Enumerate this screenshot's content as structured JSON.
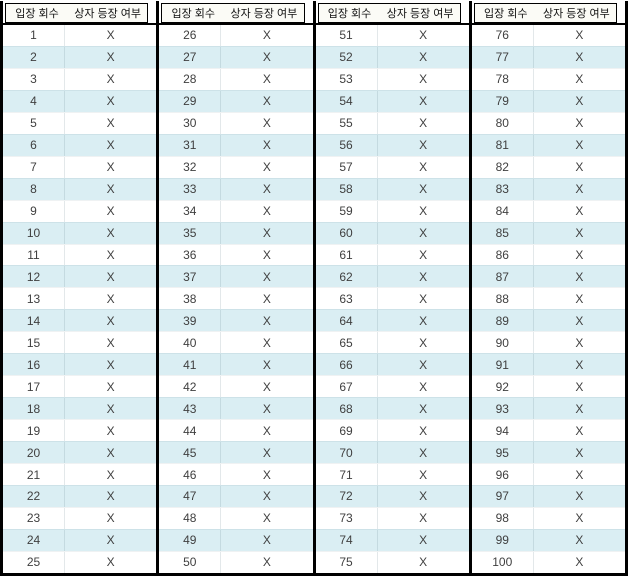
{
  "columns": {
    "entry_header": "입장 회수",
    "box_header": "상자 등장 여부"
  },
  "colors": {
    "stripe": "#daeef3",
    "border": "#000000",
    "cell_text": "#3f3f3f",
    "header_bg": "#fbfbf6"
  },
  "groups": [
    {
      "rows": [
        {
          "n": "1",
          "box": "X"
        },
        {
          "n": "2",
          "box": "X"
        },
        {
          "n": "3",
          "box": "X"
        },
        {
          "n": "4",
          "box": "X"
        },
        {
          "n": "5",
          "box": "X"
        },
        {
          "n": "6",
          "box": "X"
        },
        {
          "n": "7",
          "box": "X"
        },
        {
          "n": "8",
          "box": "X"
        },
        {
          "n": "9",
          "box": "X"
        },
        {
          "n": "10",
          "box": "X"
        },
        {
          "n": "11",
          "box": "X"
        },
        {
          "n": "12",
          "box": "X"
        },
        {
          "n": "13",
          "box": "X"
        },
        {
          "n": "14",
          "box": "X"
        },
        {
          "n": "15",
          "box": "X"
        },
        {
          "n": "16",
          "box": "X"
        },
        {
          "n": "17",
          "box": "X"
        },
        {
          "n": "18",
          "box": "X"
        },
        {
          "n": "19",
          "box": "X"
        },
        {
          "n": "20",
          "box": "X"
        },
        {
          "n": "21",
          "box": "X"
        },
        {
          "n": "22",
          "box": "X"
        },
        {
          "n": "23",
          "box": "X"
        },
        {
          "n": "24",
          "box": "X"
        },
        {
          "n": "25",
          "box": "X"
        }
      ]
    },
    {
      "rows": [
        {
          "n": "26",
          "box": "X"
        },
        {
          "n": "27",
          "box": "X"
        },
        {
          "n": "28",
          "box": "X"
        },
        {
          "n": "29",
          "box": "X"
        },
        {
          "n": "30",
          "box": "X"
        },
        {
          "n": "31",
          "box": "X"
        },
        {
          "n": "32",
          "box": "X"
        },
        {
          "n": "33",
          "box": "X"
        },
        {
          "n": "34",
          "box": "X"
        },
        {
          "n": "35",
          "box": "X"
        },
        {
          "n": "36",
          "box": "X"
        },
        {
          "n": "37",
          "box": "X"
        },
        {
          "n": "38",
          "box": "X"
        },
        {
          "n": "39",
          "box": "X"
        },
        {
          "n": "40",
          "box": "X"
        },
        {
          "n": "41",
          "box": "X"
        },
        {
          "n": "42",
          "box": "X"
        },
        {
          "n": "43",
          "box": "X"
        },
        {
          "n": "44",
          "box": "X"
        },
        {
          "n": "45",
          "box": "X"
        },
        {
          "n": "46",
          "box": "X"
        },
        {
          "n": "47",
          "box": "X"
        },
        {
          "n": "48",
          "box": "X"
        },
        {
          "n": "49",
          "box": "X"
        },
        {
          "n": "50",
          "box": "X"
        }
      ]
    },
    {
      "rows": [
        {
          "n": "51",
          "box": "X"
        },
        {
          "n": "52",
          "box": "X"
        },
        {
          "n": "53",
          "box": "X"
        },
        {
          "n": "54",
          "box": "X"
        },
        {
          "n": "55",
          "box": "X"
        },
        {
          "n": "56",
          "box": "X"
        },
        {
          "n": "57",
          "box": "X"
        },
        {
          "n": "58",
          "box": "X"
        },
        {
          "n": "59",
          "box": "X"
        },
        {
          "n": "60",
          "box": "X"
        },
        {
          "n": "61",
          "box": "X"
        },
        {
          "n": "62",
          "box": "X"
        },
        {
          "n": "63",
          "box": "X"
        },
        {
          "n": "64",
          "box": "X"
        },
        {
          "n": "65",
          "box": "X"
        },
        {
          "n": "66",
          "box": "X"
        },
        {
          "n": "67",
          "box": "X"
        },
        {
          "n": "68",
          "box": "X"
        },
        {
          "n": "69",
          "box": "X"
        },
        {
          "n": "70",
          "box": "X"
        },
        {
          "n": "71",
          "box": "X"
        },
        {
          "n": "72",
          "box": "X"
        },
        {
          "n": "73",
          "box": "X"
        },
        {
          "n": "74",
          "box": "X"
        },
        {
          "n": "75",
          "box": "X"
        }
      ]
    },
    {
      "rows": [
        {
          "n": "76",
          "box": "X"
        },
        {
          "n": "77",
          "box": "X"
        },
        {
          "n": "78",
          "box": "X"
        },
        {
          "n": "79",
          "box": "X"
        },
        {
          "n": "80",
          "box": "X"
        },
        {
          "n": "81",
          "box": "X"
        },
        {
          "n": "82",
          "box": "X"
        },
        {
          "n": "83",
          "box": "X"
        },
        {
          "n": "84",
          "box": "X"
        },
        {
          "n": "85",
          "box": "X"
        },
        {
          "n": "86",
          "box": "X"
        },
        {
          "n": "87",
          "box": "X"
        },
        {
          "n": "88",
          "box": "X"
        },
        {
          "n": "89",
          "box": "X"
        },
        {
          "n": "90",
          "box": "X"
        },
        {
          "n": "91",
          "box": "X"
        },
        {
          "n": "92",
          "box": "X"
        },
        {
          "n": "93",
          "box": "X"
        },
        {
          "n": "94",
          "box": "X"
        },
        {
          "n": "95",
          "box": "X"
        },
        {
          "n": "96",
          "box": "X"
        },
        {
          "n": "97",
          "box": "X"
        },
        {
          "n": "98",
          "box": "X"
        },
        {
          "n": "99",
          "box": "X"
        },
        {
          "n": "100",
          "box": "X"
        }
      ]
    }
  ]
}
